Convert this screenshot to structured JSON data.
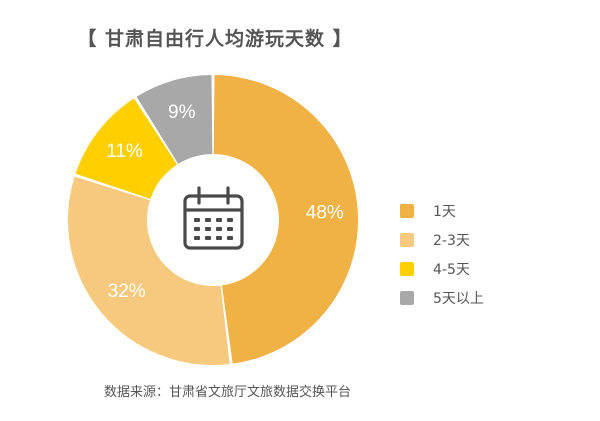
{
  "chart_data": {
    "type": "pie",
    "style": "donut",
    "title": "【 甘肃自由行人均游玩天数 】",
    "center_icon": "calendar-icon",
    "slices": [
      {
        "label": "1天",
        "value": 48,
        "value_label": "48%",
        "color": "#F0B145"
      },
      {
        "label": "2-3天",
        "value": 32,
        "value_label": "32%",
        "color": "#F7C97E"
      },
      {
        "label": "4-5天",
        "value": 11,
        "value_label": "11%",
        "color": "#FFCF00"
      },
      {
        "label": "5天以上",
        "value": 9,
        "value_label": "9%",
        "color": "#A8A8A8"
      }
    ],
    "legend_placement": "right",
    "source": "数据来源：甘肃省文旅厅文旅数据交换平台"
  }
}
